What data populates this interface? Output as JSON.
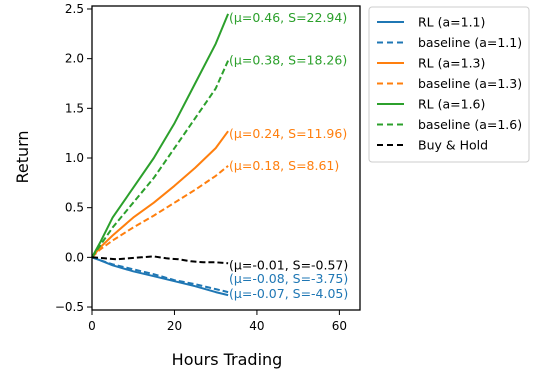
{
  "chart_data": {
    "type": "line",
    "xlabel": "Hours Trading",
    "ylabel": "Return",
    "xlim": [
      0,
      65
    ],
    "ylim": [
      -0.53,
      2.53
    ],
    "x_ticks": [
      0,
      20,
      40,
      60
    ],
    "y_ticks": [
      -0.5,
      0.0,
      0.5,
      1.0,
      1.5,
      2.0,
      2.5
    ],
    "x_tick_labels": [
      "0",
      "20",
      "40",
      "60"
    ],
    "y_tick_labels": [
      "−0.5",
      "0.0",
      "0.5",
      "1.0",
      "1.5",
      "2.0",
      "2.5"
    ],
    "grid": false,
    "legend_position": "outside right, top",
    "series": [
      {
        "name": "RL (a=1.1)",
        "color": "#1f77b4",
        "style": "solid",
        "x": [
          0,
          2,
          5,
          10,
          15,
          20,
          25,
          30,
          33
        ],
        "y": [
          0,
          -0.03,
          -0.08,
          -0.14,
          -0.19,
          -0.24,
          -0.29,
          -0.35,
          -0.38
        ],
        "annotation": "(μ=-0.07, S=-4.05)",
        "annotation_y": -0.37
      },
      {
        "name": "baseline (a=1.1)",
        "color": "#1f77b4",
        "style": "dashed",
        "x": [
          0,
          2,
          5,
          10,
          15,
          20,
          25,
          30,
          33
        ],
        "y": [
          0,
          -0.03,
          -0.07,
          -0.12,
          -0.17,
          -0.23,
          -0.27,
          -0.32,
          -0.35
        ],
        "annotation": "(μ=-0.08, S=-3.75)",
        "annotation_y": -0.22
      },
      {
        "name": "RL (a=1.3)",
        "color": "#ff7f0e",
        "style": "solid",
        "x": [
          0,
          2,
          5,
          10,
          15,
          20,
          25,
          30,
          33
        ],
        "y": [
          0,
          0.1,
          0.22,
          0.4,
          0.55,
          0.72,
          0.9,
          1.1,
          1.27
        ],
        "annotation": "(μ=0.24, S=11.96)",
        "annotation_y": 1.24
      },
      {
        "name": "baseline (a=1.3)",
        "color": "#ff7f0e",
        "style": "dashed",
        "x": [
          0,
          2,
          5,
          10,
          15,
          20,
          25,
          30,
          33
        ],
        "y": [
          0,
          0.08,
          0.17,
          0.3,
          0.42,
          0.55,
          0.68,
          0.82,
          0.92
        ],
        "annotation": "(μ=0.18, S=8.61)",
        "annotation_y": 0.92
      },
      {
        "name": "RL (a=1.6)",
        "color": "#2ca02c",
        "style": "solid",
        "x": [
          0,
          2,
          5,
          10,
          15,
          20,
          25,
          30,
          33
        ],
        "y": [
          0,
          0.15,
          0.4,
          0.7,
          1.0,
          1.35,
          1.75,
          2.15,
          2.45
        ],
        "annotation": "(μ=0.46, S=22.94)",
        "annotation_y": 2.41
      },
      {
        "name": "baseline (a=1.6)",
        "color": "#2ca02c",
        "style": "dashed",
        "x": [
          0,
          2,
          5,
          10,
          15,
          20,
          25,
          30,
          33
        ],
        "y": [
          0,
          0.12,
          0.3,
          0.55,
          0.8,
          1.1,
          1.4,
          1.7,
          1.98
        ],
        "annotation": "(μ=0.38, S=18.26)",
        "annotation_y": 1.98
      },
      {
        "name": "Buy & Hold",
        "color": "#000000",
        "style": "dashed",
        "x": [
          0,
          3,
          6,
          9,
          12,
          15,
          18,
          21,
          24,
          27,
          30,
          33
        ],
        "y": [
          0,
          -0.01,
          -0.02,
          -0.01,
          0.0,
          0.01,
          -0.01,
          -0.02,
          -0.04,
          -0.05,
          -0.05,
          -0.06
        ],
        "annotation": "(μ=-0.01, S=-0.57)",
        "annotation_y": -0.08
      }
    ]
  }
}
